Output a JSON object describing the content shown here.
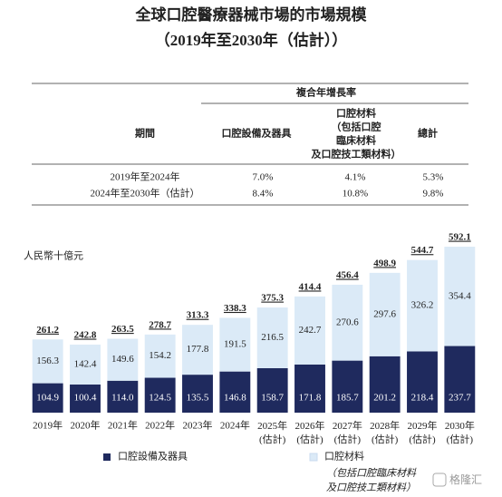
{
  "header": {
    "title": "全球口腔醫療器械市場的市場規模",
    "subtitle": "（2019年至2030年（估計））"
  },
  "table": {
    "group_header": "複合年增長率",
    "columns": [
      "期間",
      "口腔設備及器具",
      "口腔材料\n（包括口腔\n臨床材料\n及口腔技工類材料）",
      "總計"
    ],
    "rows": [
      [
        "2019年至2024年",
        "7.0%",
        "4.1%",
        "5.3%"
      ],
      [
        "2024年至2030年（估計）",
        "8.4%",
        "10.8%",
        "9.8%"
      ]
    ]
  },
  "chart_data": {
    "type": "stacked_bar",
    "unit_label": "人民幣十億元",
    "categories": [
      "2019年",
      "2020年",
      "2021年",
      "2022年",
      "2023年",
      "2024年",
      "2025年\n(估計)",
      "2026年\n(估計)",
      "2027年\n(估計)",
      "2028年\n(估計)",
      "2029年\n(估計)",
      "2030年\n(估計)"
    ],
    "series": [
      {
        "name": "口腔設備及器具",
        "color": "#1f2a5e",
        "values": [
          104.9,
          100.4,
          114.0,
          124.5,
          135.5,
          146.8,
          158.7,
          171.8,
          185.7,
          201.2,
          218.4,
          237.7
        ],
        "value_labels": [
          "104.9",
          "100.4",
          "114.0",
          "124.5",
          "135.5",
          "146.8",
          "158.7",
          "171.8",
          "185.7",
          "201.2",
          "218.4",
          "237.7"
        ]
      },
      {
        "name": "口腔材料",
        "color": "#dbeaf7",
        "values": [
          156.3,
          142.4,
          149.6,
          154.2,
          177.8,
          191.5,
          216.5,
          242.7,
          270.6,
          297.6,
          326.2,
          354.4
        ],
        "value_labels": [
          "156.3",
          "142.4",
          "149.6",
          "154.2",
          "177.8",
          "191.5",
          "216.5",
          "242.7",
          "270.6",
          "297.6",
          "326.2",
          "354.4"
        ]
      }
    ],
    "totals": [
      261.2,
      242.8,
      263.5,
      278.7,
      313.3,
      338.3,
      375.3,
      414.4,
      456.4,
      498.9,
      544.7,
      592.1
    ],
    "legend_note": "（包括口腔臨床材料\n及口腔技工類材料）"
  },
  "watermark": "格隆汇"
}
